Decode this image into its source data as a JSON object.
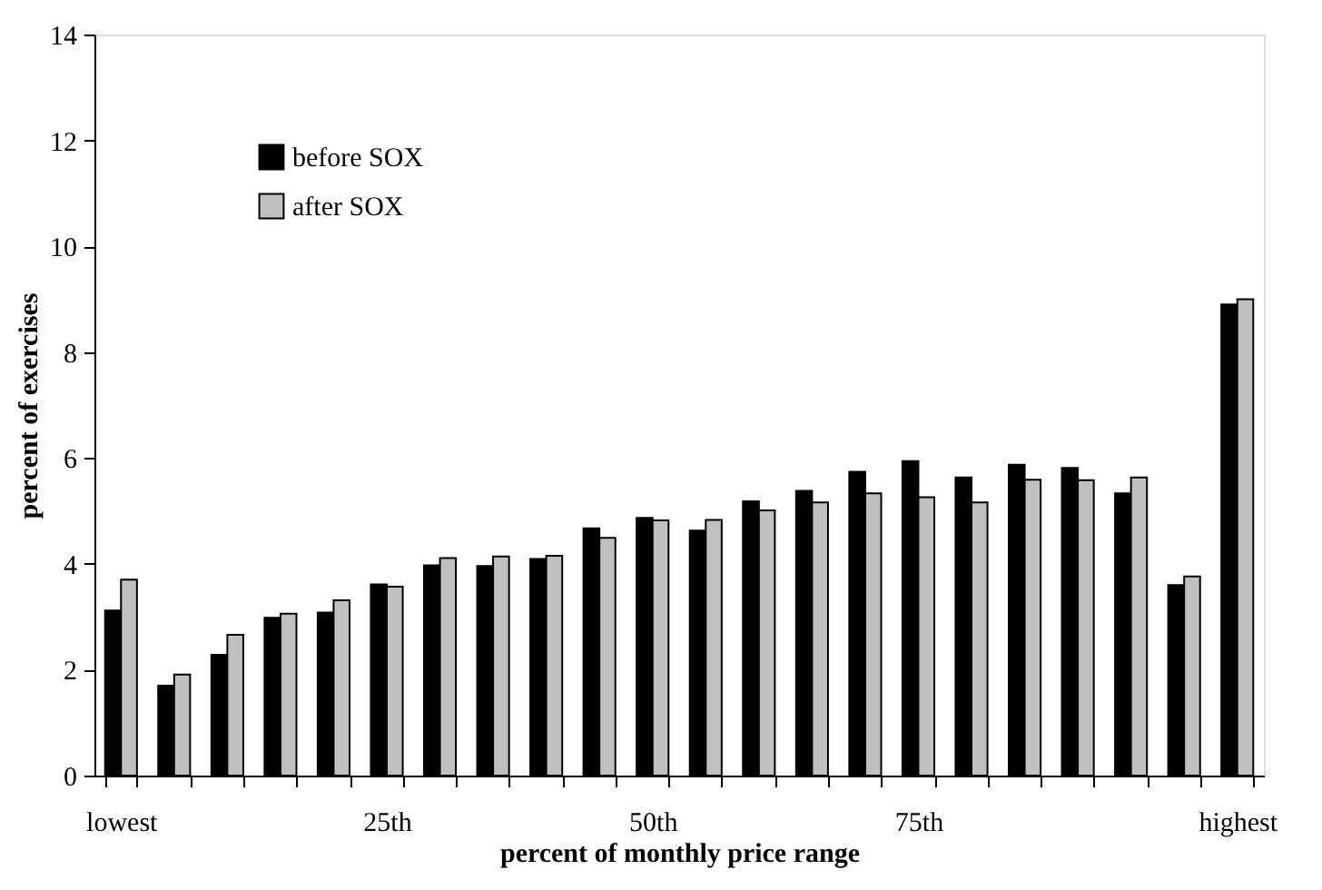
{
  "chart_data": {
    "type": "bar",
    "xlabel": "percent of monthly price range",
    "ylabel": "percent of exercises",
    "categories": [
      "lowest",
      null,
      null,
      null,
      null,
      "25th",
      null,
      null,
      null,
      null,
      "50th",
      null,
      null,
      null,
      null,
      "75th",
      null,
      null,
      null,
      null,
      null,
      "highest"
    ],
    "series": [
      {
        "name": "before SOX",
        "color": "#000000",
        "values": [
          3.12,
          1.7,
          2.28,
          2.98,
          3.08,
          3.61,
          3.97,
          3.96,
          4.09,
          4.67,
          4.87,
          4.63,
          5.18,
          5.38,
          5.74,
          5.94,
          5.63,
          5.87,
          5.81,
          5.33,
          3.6,
          8.9
        ]
      },
      {
        "name": "after SOX",
        "color": "#c0c0c0",
        "values": [
          3.7,
          1.91,
          2.66,
          3.06,
          3.31,
          3.57,
          4.11,
          4.14,
          4.15,
          4.49,
          4.82,
          4.83,
          5.01,
          5.16,
          5.33,
          5.26,
          5.16,
          5.59,
          5.58,
          5.63,
          3.76,
          9.0
        ]
      }
    ],
    "ylim": [
      0,
      14
    ],
    "yticks": [
      0,
      2,
      4,
      6,
      8,
      10,
      12,
      14
    ],
    "grid": false,
    "legend": "top left"
  }
}
